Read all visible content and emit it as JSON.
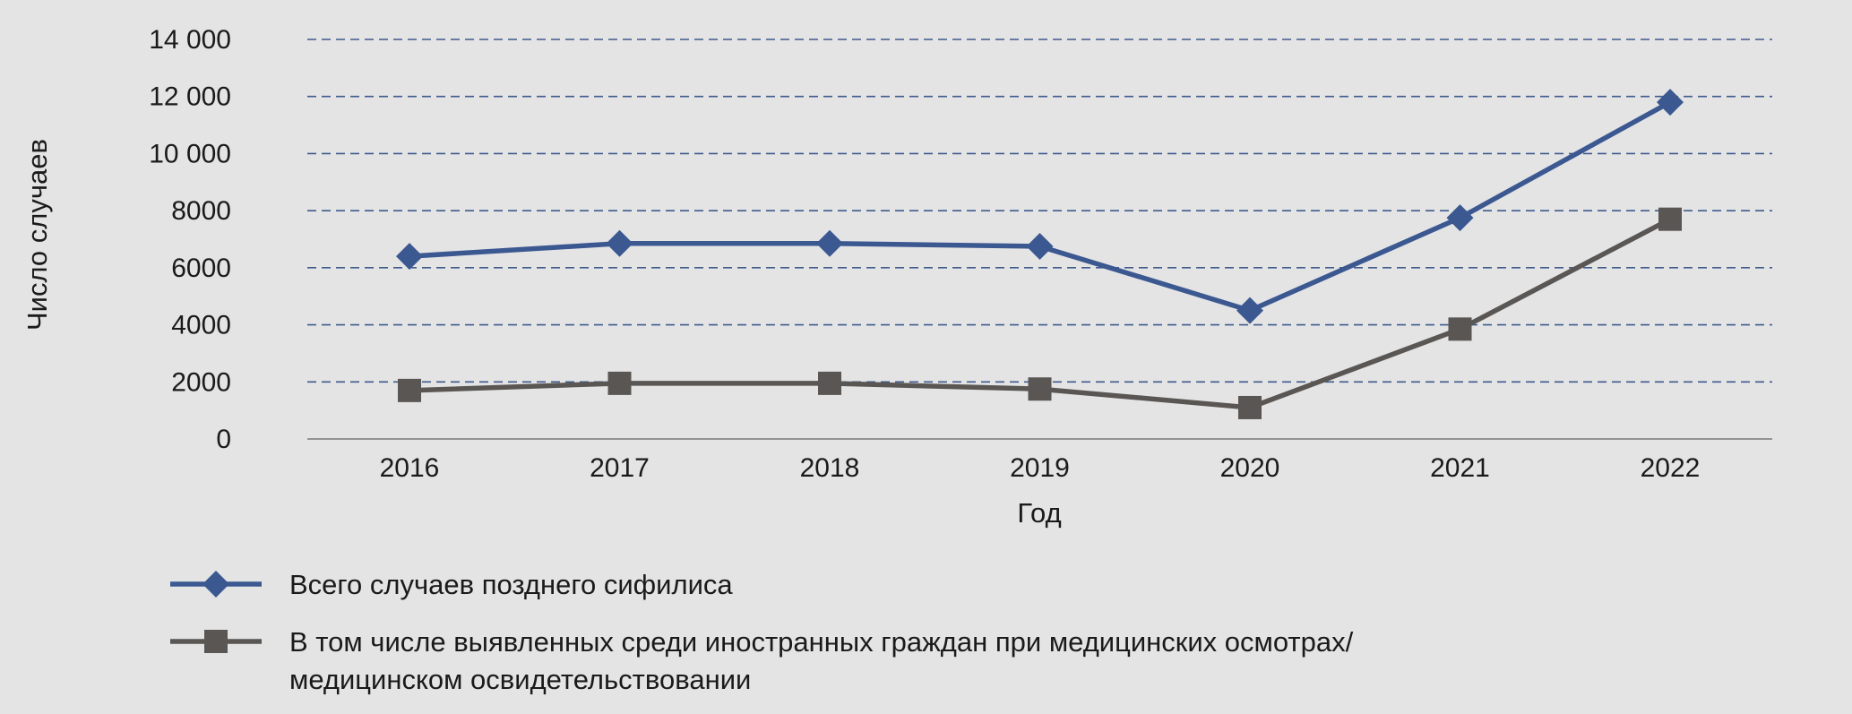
{
  "chart_data": {
    "type": "line",
    "title": "",
    "xlabel": "Год",
    "ylabel": "Число случаев",
    "categories": [
      "2016",
      "2017",
      "2018",
      "2019",
      "2020",
      "2021",
      "2022"
    ],
    "ylim": [
      0,
      14000
    ],
    "yticks": [
      0,
      2000,
      4000,
      6000,
      8000,
      10000,
      12000,
      14000
    ],
    "ytick_labels": [
      "0",
      "2000",
      "4000",
      "6000",
      "8000",
      "10 000",
      "12 000",
      "14 000"
    ],
    "grid": "horizontal dashed",
    "legend_position": "bottom-left",
    "series": [
      {
        "name": "Всего случаев позднего сифилиса",
        "values": [
          6400,
          6850,
          6850,
          6750,
          4500,
          7750,
          11800
        ],
        "color": "#3b5891",
        "marker": "diamond"
      },
      {
        "name": "В том числе выявленных среди иностранных граждан при медицинских осмотрах/ медицинском освидетельствовании",
        "name_lines": [
          "В том числе выявленных среди иностранных граждан при медицинских осмотрах/",
          "медицинском освидетельствовании"
        ],
        "values": [
          1700,
          1950,
          1950,
          1750,
          1100,
          3850,
          7700
        ],
        "color": "#595653",
        "marker": "square"
      }
    ]
  }
}
